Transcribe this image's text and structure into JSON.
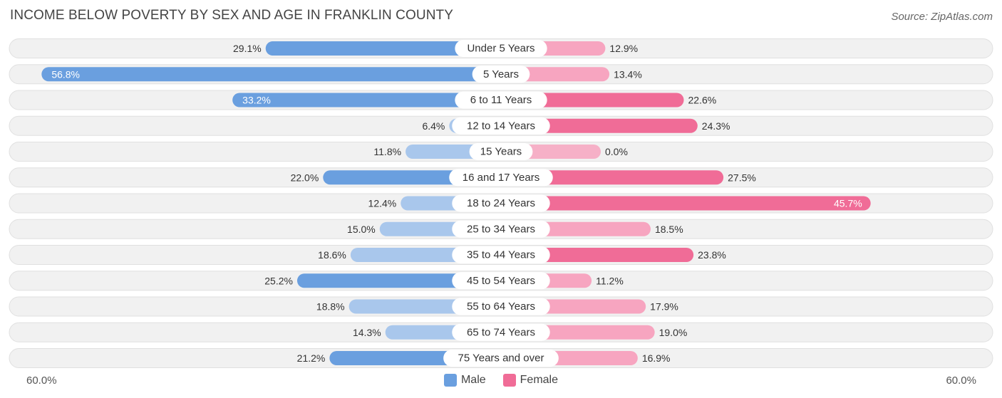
{
  "chart_data": {
    "type": "bar",
    "orientation": "diverging-horizontal",
    "title": "INCOME BELOW POVERTY BY SEX AND AGE IN FRANKLIN COUNTY",
    "source": "Source: ZipAtlas.com",
    "categories": [
      "Under 5 Years",
      "5 Years",
      "6 to 11 Years",
      "12 to 14 Years",
      "15 Years",
      "16 and 17 Years",
      "18 to 24 Years",
      "25 to 34 Years",
      "35 to 44 Years",
      "45 to 54 Years",
      "55 to 64 Years",
      "65 to 74 Years",
      "75 Years and over"
    ],
    "series": [
      {
        "name": "Male",
        "values": [
          29.1,
          56.8,
          33.2,
          6.4,
          11.8,
          22.0,
          12.4,
          15.0,
          18.6,
          25.2,
          18.8,
          14.3,
          21.2
        ],
        "labels": [
          "29.1%",
          "56.8%",
          "33.2%",
          "6.4%",
          "11.8%",
          "22.0%",
          "12.4%",
          "15.0%",
          "18.6%",
          "25.2%",
          "18.8%",
          "14.3%",
          "21.2%"
        ]
      },
      {
        "name": "Female",
        "values": [
          12.9,
          13.4,
          22.6,
          24.3,
          0.0,
          27.5,
          45.7,
          18.5,
          23.8,
          11.2,
          17.9,
          19.0,
          16.9
        ],
        "labels": [
          "12.9%",
          "13.4%",
          "22.6%",
          "24.3%",
          "0.0%",
          "27.5%",
          "45.7%",
          "18.5%",
          "23.8%",
          "11.2%",
          "17.9%",
          "19.0%",
          "16.9%"
        ]
      }
    ],
    "xlim": [
      -60,
      60
    ],
    "axis_left_label": "60.0%",
    "axis_right_label": "60.0%",
    "legend_position": "bottom-center"
  },
  "colors": {
    "male_strong": "#6a9fdf",
    "male_light": "#a9c7ec",
    "female_strong": "#f06c97",
    "female_light": "#f7a5c0",
    "row_bg": "#f1f1f1",
    "row_border": "#e0e0e0"
  },
  "legend": {
    "male_label": "Male",
    "female_label": "Female"
  }
}
